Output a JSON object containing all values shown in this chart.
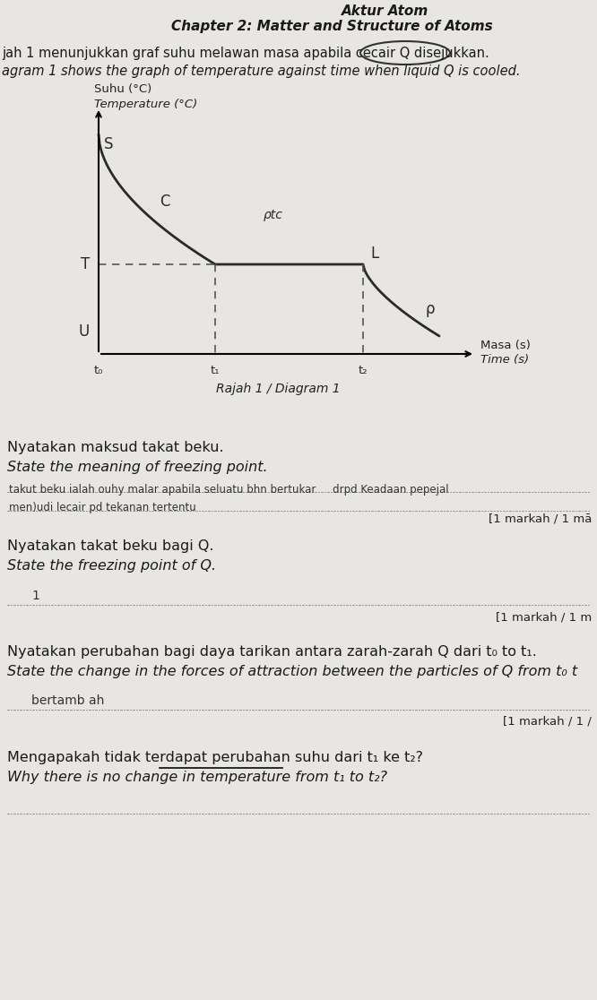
{
  "bg_color": "#dcdad6",
  "page_color": "#e8e6e2",
  "header_title1": "Aktur Atom",
  "header_title2": "Chapter 2: Matter and Structure of Atoms",
  "intro_malay": "jah 1 menunjukkan graf suhu melawan masa apabila cecair Q disejukkan.",
  "intro_english": "agram 1 shows the graph of temperature against time when liquid Q is cooled.",
  "ylabel_malay": "Suhu (°C)",
  "ylabel_english": "Temperature (°C)",
  "xlabel_malay": "Masa (s)",
  "xlabel_english": "Time (s)",
  "diagram_label": "Rajah 1 / Diagram 1",
  "label_S": "S",
  "label_C": "C",
  "label_T": "T",
  "label_U": "U",
  "label_L": "L",
  "label_ptc": "ρtc",
  "label_rho": "ρ",
  "label_t0": "t₀",
  "label_t1": "t₁",
  "label_t2": "t₂",
  "q1_malay": "Nyatakan maksud takat beku.",
  "q1_english": "State the meaning of freezing point.",
  "q1_ans1": "takut beku ialah ouhy malar apabila seluatu bhn bertukar     drpd Keadaan pepejal",
  "q1_ans2": "men)udi lecair pd tekanan tertentu",
  "q1_marks": "[1 markah / 1 mā",
  "q2_malay": "Nyatakan takat beku bagi Q.",
  "q2_english": "State the freezing point of Q.",
  "q2_ans": "1",
  "q2_marks": "[1 markah / 1 m",
  "q3_malay": "Nyatakan perubahan bagi daya tarikan antara zarah-zarah Q dari t₀ to t₁.",
  "q3_english": "State the change in the forces of attraction between the particles of Q from t₀ t",
  "q3_ans": "bertamb ah",
  "q3_marks": "[1 markah / 1 /",
  "q4_malay": "Mengapakah tidak terdapat perubahan suhu dari t₁ ke t₂?",
  "q4_english": "Why there is no change in temperature from t₁ to t₂?"
}
